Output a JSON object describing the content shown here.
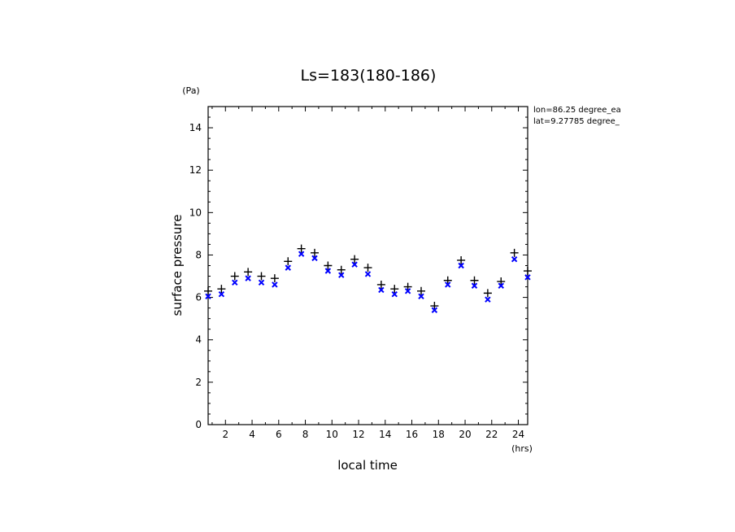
{
  "chart_data": {
    "type": "scatter",
    "title": "Ls=183(180-186)",
    "xlabel": "local time",
    "ylabel": "surface pressure",
    "x_unit": "(hrs)",
    "y_unit": "(Pa)",
    "xlim": [
      0.7,
      24.7
    ],
    "ylim": [
      0,
      15
    ],
    "x_ticks": [
      2,
      4,
      6,
      8,
      10,
      12,
      14,
      16,
      18,
      20,
      22,
      24
    ],
    "y_ticks": [
      0,
      2,
      4,
      6,
      8,
      10,
      12,
      14
    ],
    "grid": false,
    "annotations": [
      "lon=86.25 degree_ea",
      "lat=9.27785 degree_"
    ],
    "x": [
      0.7,
      1.7,
      2.7,
      3.7,
      4.7,
      5.7,
      6.7,
      7.7,
      8.7,
      9.7,
      10.7,
      11.7,
      12.7,
      13.7,
      14.7,
      15.7,
      16.7,
      17.7,
      18.7,
      19.7,
      20.7,
      21.7,
      22.7,
      23.7,
      24.7
    ],
    "series": [
      {
        "marker": "plus",
        "color": "#000000",
        "values": [
          6.3,
          6.4,
          7.0,
          7.2,
          7.0,
          6.9,
          7.7,
          8.3,
          8.1,
          7.5,
          7.3,
          7.8,
          7.4,
          6.6,
          6.4,
          6.5,
          6.3,
          5.6,
          6.8,
          7.75,
          6.8,
          6.2,
          6.75,
          8.1,
          7.25
        ]
      },
      {
        "marker": "cross",
        "color": "#0000ff",
        "values": [
          6.05,
          6.15,
          6.7,
          6.9,
          6.7,
          6.6,
          7.4,
          8.05,
          7.85,
          7.25,
          7.05,
          7.55,
          7.1,
          6.35,
          6.15,
          6.3,
          6.05,
          5.4,
          6.6,
          7.5,
          6.55,
          5.9,
          6.55,
          7.8,
          6.95
        ]
      }
    ]
  }
}
